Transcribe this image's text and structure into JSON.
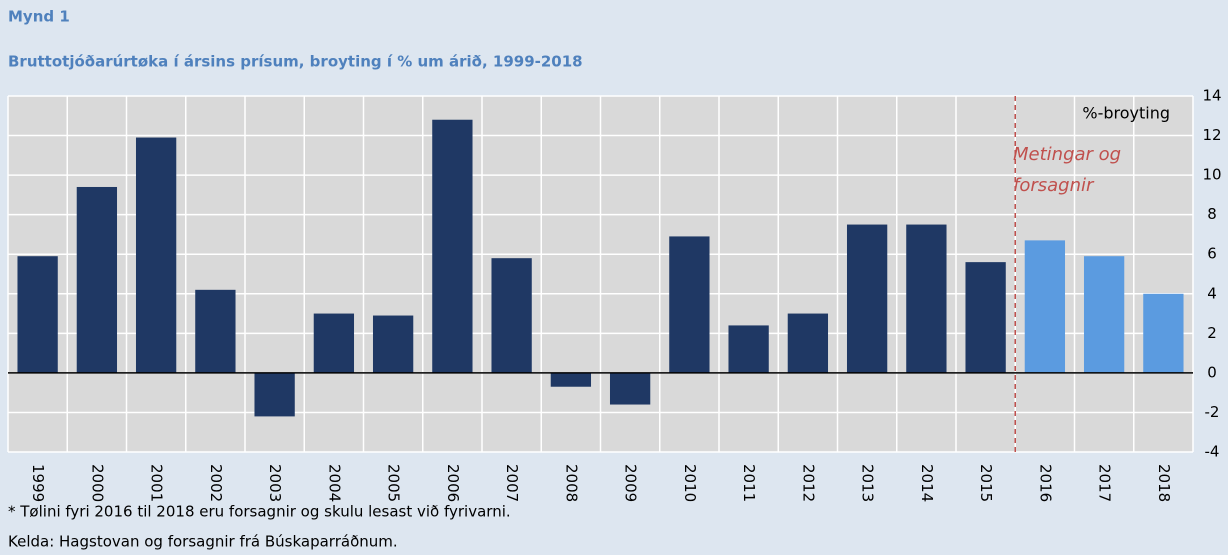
{
  "chart_data": {
    "type": "bar",
    "label": "Mynd 1",
    "title": "Bruttotjóðarúrtøka í ársins prísum, broyting í % um árið, 1999-2018",
    "unit_label": "%-broyting",
    "annotation_lines": [
      "Metingar og",
      "forsagnir"
    ],
    "categories": [
      "1999",
      "2000",
      "2001",
      "2002",
      "2003",
      "2004",
      "2005",
      "2006",
      "2007",
      "2008",
      "2009",
      "2010",
      "2011",
      "2012",
      "2013",
      "2014",
      "2015",
      "2016",
      "2017",
      "2018"
    ],
    "values": [
      5.9,
      9.4,
      11.9,
      4.2,
      -2.2,
      3.0,
      2.9,
      12.8,
      5.8,
      -0.7,
      -1.6,
      6.9,
      2.4,
      3.0,
      7.5,
      7.5,
      5.6,
      6.7,
      5.9,
      4.0
    ],
    "colors": [
      "#1f3864",
      "#1f3864",
      "#1f3864",
      "#1f3864",
      "#1f3864",
      "#1f3864",
      "#1f3864",
      "#1f3864",
      "#1f3864",
      "#1f3864",
      "#1f3864",
      "#1f3864",
      "#1f3864",
      "#1f3864",
      "#1f3864",
      "#1f3864",
      "#1f3864",
      "#5b9be0",
      "#5b9be0",
      "#5b9be0"
    ],
    "ylim": [
      -4,
      14
    ],
    "yticks": [
      -4,
      -2,
      0,
      2,
      4,
      6,
      8,
      10,
      12,
      14
    ],
    "grid": true,
    "footnotes": [
      "* Tølini fyri 2016 til 2018 eru forsagnir og skulu lesast við fyrivarni.",
      "Kelda: Hagstovan og forsagnir frá Búskaparráðnum."
    ]
  }
}
